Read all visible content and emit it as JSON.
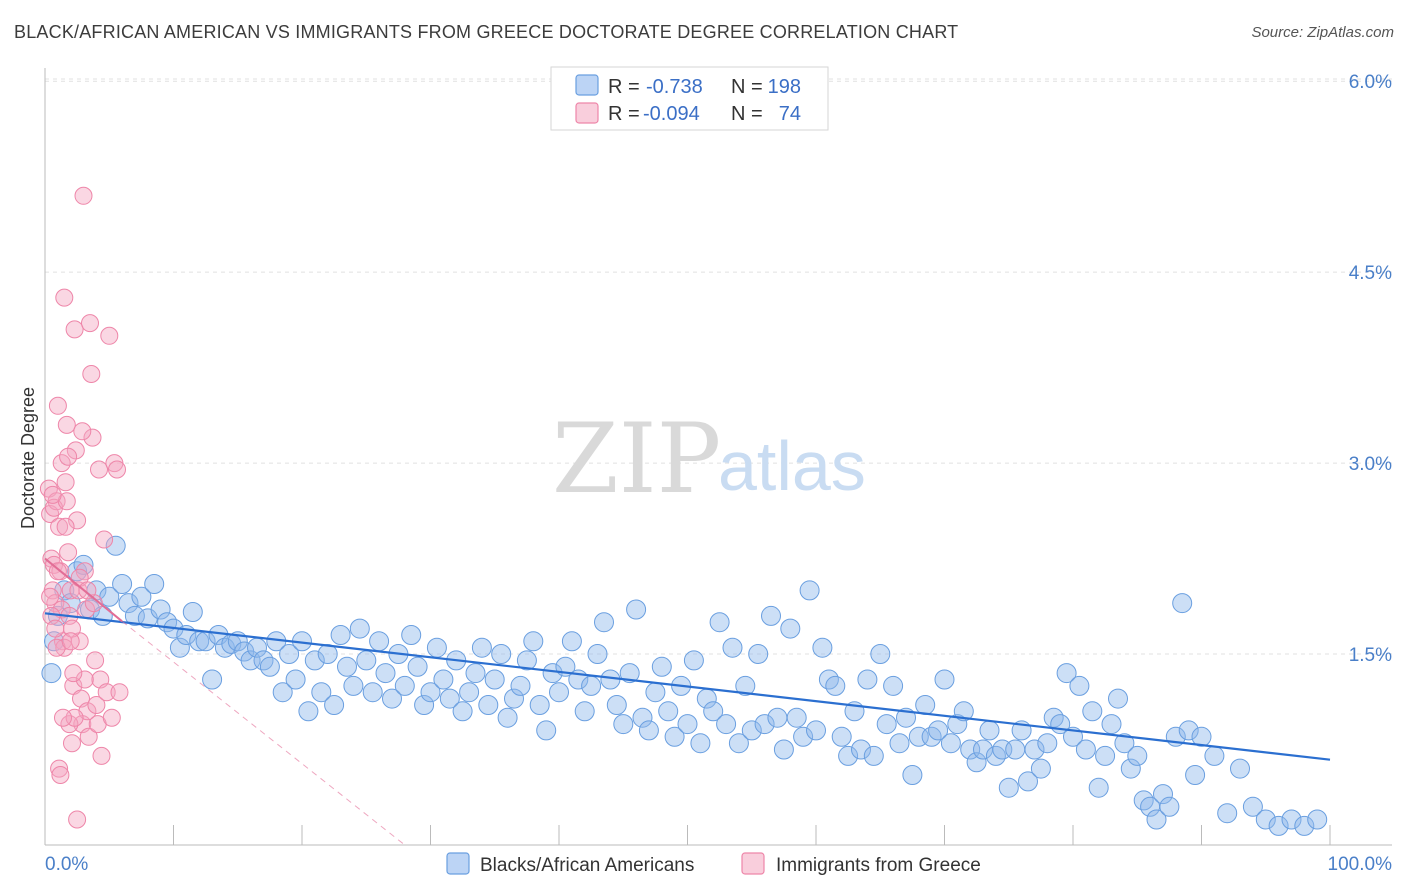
{
  "header": {
    "title": "BLACK/AFRICAN AMERICAN VS IMMIGRANTS FROM GREECE DOCTORATE DEGREE CORRELATION CHART",
    "source": "Source: ZipAtlas.com"
  },
  "watermark": {
    "zip": "ZIP",
    "atlas": "atlas"
  },
  "legend": {
    "r_label": "R =",
    "n_label": "N =",
    "rows": [
      {
        "r": "-0.738",
        "n": "198",
        "color": "#8fb8ec"
      },
      {
        "r": "-0.094",
        "n": "74",
        "color": "#f4a7c0"
      }
    ]
  },
  "chart_data": {
    "type": "scatter",
    "title": "BLACK/AFRICAN AMERICAN VS IMMIGRANTS FROM GREECE DOCTORATE DEGREE CORRELATION CHART",
    "ylabel": "Doctorate Degree",
    "xlabel": "",
    "xlim": [
      0,
      100
    ],
    "ylim": [
      0,
      6.2
    ],
    "x_tick_labels": [
      "0.0%",
      "100.0%"
    ],
    "y_ticks": [
      1.5,
      3.0,
      4.5,
      6.0
    ],
    "y_tick_labels": [
      "1.5%",
      "3.0%",
      "4.5%",
      "6.0%"
    ],
    "grid": "horizontal dashed",
    "legend_position": "top-center",
    "series": [
      {
        "name": "Blacks/African Americans",
        "color": "#8fb8ec",
        "stroke": "#6a9fe0",
        "trend": {
          "x": [
            0,
            100
          ],
          "y": [
            1.82,
            0.67
          ],
          "color": "#2b6fd0",
          "dashed": false
        },
        "points": [
          [
            0.5,
            1.35
          ],
          [
            0.7,
            1.6
          ],
          [
            1,
            1.8
          ],
          [
            1.5,
            2.0
          ],
          [
            2,
            1.9
          ],
          [
            2.5,
            2.15
          ],
          [
            3,
            2.2
          ],
          [
            3.5,
            1.85
          ],
          [
            4,
            2.0
          ],
          [
            4.5,
            1.8
          ],
          [
            5,
            1.95
          ],
          [
            5.5,
            2.35
          ],
          [
            6,
            2.05
          ],
          [
            6.5,
            1.9
          ],
          [
            7,
            1.8
          ],
          [
            7.5,
            1.95
          ],
          [
            8,
            1.78
          ],
          [
            8.5,
            2.05
          ],
          [
            9,
            1.85
          ],
          [
            9.5,
            1.75
          ],
          [
            10,
            1.7
          ],
          [
            10.5,
            1.55
          ],
          [
            11,
            1.65
          ],
          [
            11.5,
            1.83
          ],
          [
            12,
            1.6
          ],
          [
            12.5,
            1.6
          ],
          [
            13,
            1.3
          ],
          [
            13.5,
            1.65
          ],
          [
            14,
            1.55
          ],
          [
            14.5,
            1.58
          ],
          [
            15,
            1.6
          ],
          [
            15.5,
            1.52
          ],
          [
            16,
            1.45
          ],
          [
            16.5,
            1.55
          ],
          [
            17,
            1.45
          ],
          [
            17.5,
            1.4
          ],
          [
            18,
            1.6
          ],
          [
            18.5,
            1.2
          ],
          [
            19,
            1.5
          ],
          [
            19.5,
            1.3
          ],
          [
            20,
            1.6
          ],
          [
            20.5,
            1.05
          ],
          [
            21,
            1.45
          ],
          [
            21.5,
            1.2
          ],
          [
            22,
            1.5
          ],
          [
            22.5,
            1.1
          ],
          [
            23,
            1.65
          ],
          [
            23.5,
            1.4
          ],
          [
            24,
            1.25
          ],
          [
            24.5,
            1.7
          ],
          [
            25,
            1.45
          ],
          [
            25.5,
            1.2
          ],
          [
            26,
            1.6
          ],
          [
            26.5,
            1.35
          ],
          [
            27,
            1.15
          ],
          [
            27.5,
            1.5
          ],
          [
            28,
            1.25
          ],
          [
            28.5,
            1.65
          ],
          [
            29,
            1.4
          ],
          [
            29.5,
            1.1
          ],
          [
            30,
            1.2
          ],
          [
            30.5,
            1.55
          ],
          [
            31,
            1.3
          ],
          [
            31.5,
            1.15
          ],
          [
            32,
            1.45
          ],
          [
            32.5,
            1.05
          ],
          [
            33,
            1.2
          ],
          [
            33.5,
            1.35
          ],
          [
            34,
            1.55
          ],
          [
            34.5,
            1.1
          ],
          [
            35,
            1.3
          ],
          [
            35.5,
            1.5
          ],
          [
            36,
            1.0
          ],
          [
            36.5,
            1.15
          ],
          [
            37,
            1.25
          ],
          [
            37.5,
            1.45
          ],
          [
            38,
            1.6
          ],
          [
            38.5,
            1.1
          ],
          [
            39,
            0.9
          ],
          [
            39.5,
            1.35
          ],
          [
            40,
            1.2
          ],
          [
            40.5,
            1.4
          ],
          [
            41,
            1.6
          ],
          [
            41.5,
            1.3
          ],
          [
            42,
            1.05
          ],
          [
            42.5,
            1.25
          ],
          [
            43,
            1.5
          ],
          [
            43.5,
            1.75
          ],
          [
            44,
            1.3
          ],
          [
            44.5,
            1.1
          ],
          [
            45,
            0.95
          ],
          [
            45.5,
            1.35
          ],
          [
            46,
            1.85
          ],
          [
            46.5,
            1.0
          ],
          [
            47,
            0.9
          ],
          [
            47.5,
            1.2
          ],
          [
            48,
            1.4
          ],
          [
            48.5,
            1.05
          ],
          [
            49,
            0.85
          ],
          [
            49.5,
            1.25
          ],
          [
            50,
            0.95
          ],
          [
            50.5,
            1.45
          ],
          [
            51,
            0.8
          ],
          [
            51.5,
            1.15
          ],
          [
            52,
            1.05
          ],
          [
            52.5,
            1.75
          ],
          [
            53,
            0.95
          ],
          [
            53.5,
            1.55
          ],
          [
            54,
            0.8
          ],
          [
            54.5,
            1.25
          ],
          [
            55,
            0.9
          ],
          [
            55.5,
            1.5
          ],
          [
            56,
            0.95
          ],
          [
            56.5,
            1.8
          ],
          [
            57,
            1.0
          ],
          [
            57.5,
            0.75
          ],
          [
            58,
            1.7
          ],
          [
            58.5,
            1.0
          ],
          [
            59,
            0.85
          ],
          [
            59.5,
            2.0
          ],
          [
            60,
            0.9
          ],
          [
            60.5,
            1.55
          ],
          [
            61,
            1.3
          ],
          [
            61.5,
            1.25
          ],
          [
            62,
            0.85
          ],
          [
            62.5,
            0.7
          ],
          [
            63,
            1.05
          ],
          [
            63.5,
            0.75
          ],
          [
            64,
            1.3
          ],
          [
            64.5,
            0.7
          ],
          [
            65,
            1.5
          ],
          [
            65.5,
            0.95
          ],
          [
            66,
            1.25
          ],
          [
            66.5,
            0.8
          ],
          [
            67,
            1.0
          ],
          [
            67.5,
            0.55
          ],
          [
            68,
            0.85
          ],
          [
            68.5,
            1.1
          ],
          [
            69,
            0.85
          ],
          [
            69.5,
            0.9
          ],
          [
            70,
            1.3
          ],
          [
            70.5,
            0.8
          ],
          [
            71,
            0.95
          ],
          [
            71.5,
            1.05
          ],
          [
            72,
            0.75
          ],
          [
            72.5,
            0.65
          ],
          [
            73,
            0.75
          ],
          [
            73.5,
            0.9
          ],
          [
            74,
            0.7
          ],
          [
            74.5,
            0.75
          ],
          [
            75,
            0.45
          ],
          [
            75.5,
            0.75
          ],
          [
            76,
            0.9
          ],
          [
            76.5,
            0.5
          ],
          [
            77,
            0.75
          ],
          [
            77.5,
            0.6
          ],
          [
            78,
            0.8
          ],
          [
            78.5,
            1.0
          ],
          [
            79,
            0.95
          ],
          [
            79.5,
            1.35
          ],
          [
            80,
            0.85
          ],
          [
            80.5,
            1.25
          ],
          [
            81,
            0.75
          ],
          [
            81.5,
            1.05
          ],
          [
            82,
            0.45
          ],
          [
            82.5,
            0.7
          ],
          [
            83,
            0.95
          ],
          [
            83.5,
            1.15
          ],
          [
            84,
            0.8
          ],
          [
            84.5,
            0.6
          ],
          [
            85,
            0.7
          ],
          [
            85.5,
            0.35
          ],
          [
            86,
            0.3
          ],
          [
            86.5,
            0.2
          ],
          [
            87,
            0.4
          ],
          [
            87.5,
            0.3
          ],
          [
            88,
            0.85
          ],
          [
            88.5,
            1.9
          ],
          [
            89,
            0.9
          ],
          [
            89.5,
            0.55
          ],
          [
            90,
            0.85
          ],
          [
            91,
            0.7
          ],
          [
            92,
            0.25
          ],
          [
            93,
            0.6
          ],
          [
            94,
            0.3
          ],
          [
            95,
            0.2
          ],
          [
            96,
            0.15
          ],
          [
            97,
            0.2
          ],
          [
            98,
            0.15
          ],
          [
            99,
            0.2
          ]
        ]
      },
      {
        "name": "Immigrants from Greece",
        "color": "#f4a7c0",
        "stroke": "#ee86a9",
        "trend": {
          "x": [
            0,
            28
          ],
          "y": [
            2.25,
            -0.05
          ],
          "color": "#e26d96",
          "dashed": true,
          "solid_until_x": 6
        },
        "points": [
          [
            0.3,
            2.8
          ],
          [
            0.4,
            2.6
          ],
          [
            0.5,
            2.25
          ],
          [
            0.6,
            2.0
          ],
          [
            0.7,
            2.2
          ],
          [
            0.8,
            1.9
          ],
          [
            0.9,
            2.7
          ],
          [
            1,
            3.45
          ],
          [
            1.1,
            2.5
          ],
          [
            1.2,
            2.15
          ],
          [
            1.3,
            1.85
          ],
          [
            1.4,
            1.6
          ],
          [
            1.5,
            1.55
          ],
          [
            1.6,
            2.85
          ],
          [
            1.7,
            3.3
          ],
          [
            1.8,
            2.3
          ],
          [
            1.9,
            1.8
          ],
          [
            2.0,
            2.0
          ],
          [
            2.1,
            0.8
          ],
          [
            2.2,
            1.25
          ],
          [
            2.3,
            4.05
          ],
          [
            2.4,
            3.1
          ],
          [
            2.5,
            2.55
          ],
          [
            2.6,
            2.0
          ],
          [
            2.7,
            1.6
          ],
          [
            2.8,
            1.15
          ],
          [
            2.9,
            0.95
          ],
          [
            3.0,
            5.1
          ],
          [
            3.1,
            2.15
          ],
          [
            3.2,
            1.85
          ],
          [
            3.3,
            1.05
          ],
          [
            3.4,
            0.85
          ],
          [
            3.5,
            4.1
          ],
          [
            3.6,
            3.7
          ],
          [
            3.7,
            3.2
          ],
          [
            3.8,
            1.9
          ],
          [
            3.9,
            1.45
          ],
          [
            4.0,
            1.1
          ],
          [
            4.1,
            0.95
          ],
          [
            4.2,
            2.95
          ],
          [
            4.3,
            1.3
          ],
          [
            4.4,
            0.7
          ],
          [
            4.6,
            2.4
          ],
          [
            4.8,
            1.2
          ],
          [
            5.0,
            4.0
          ],
          [
            5.2,
            1.0
          ],
          [
            5.4,
            3.0
          ],
          [
            5.6,
            2.95
          ],
          [
            5.8,
            1.2
          ],
          [
            0.5,
            1.8
          ],
          [
            0.7,
            2.65
          ],
          [
            0.9,
            1.55
          ],
          [
            1.1,
            0.6
          ],
          [
            1.3,
            3.0
          ],
          [
            1.5,
            4.3
          ],
          [
            1.7,
            2.7
          ],
          [
            1.9,
            0.95
          ],
          [
            2.1,
            1.7
          ],
          [
            2.3,
            1.0
          ],
          [
            2.5,
            0.2
          ],
          [
            2.7,
            2.1
          ],
          [
            2.9,
            3.25
          ],
          [
            3.1,
            1.3
          ],
          [
            3.3,
            2.0
          ],
          [
            0.4,
            1.95
          ],
          [
            0.6,
            2.75
          ],
          [
            0.8,
            1.7
          ],
          [
            1.0,
            2.15
          ],
          [
            1.2,
            0.55
          ],
          [
            1.4,
            1.0
          ],
          [
            1.6,
            2.5
          ],
          [
            1.8,
            3.05
          ],
          [
            2.0,
            1.6
          ],
          [
            2.2,
            1.35
          ]
        ]
      }
    ]
  },
  "bottom_legend": [
    {
      "label": "Blacks/African Americans",
      "color": "#8fb8ec"
    },
    {
      "label": "Immigrants from Greece",
      "color": "#f4a7c0"
    }
  ]
}
